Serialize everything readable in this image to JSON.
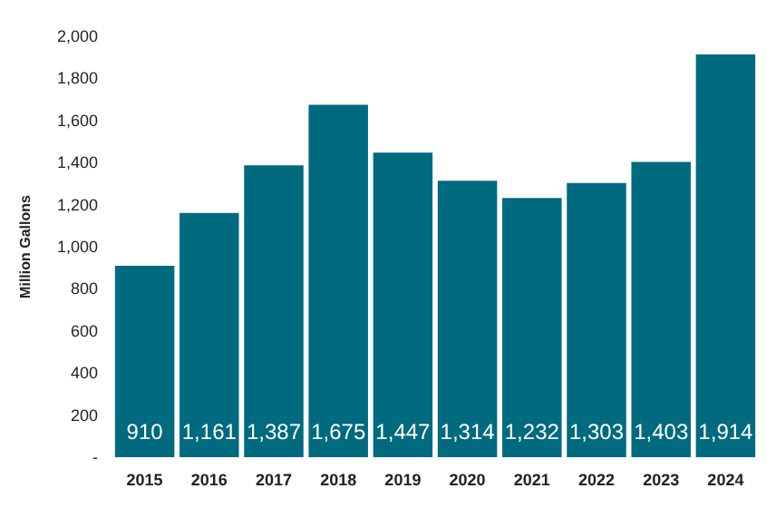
{
  "chart_data": {
    "type": "bar",
    "ylabel": "Million Gallons",
    "categories": [
      "2015",
      "2016",
      "2017",
      "2018",
      "2019",
      "2020",
      "2021",
      "2022",
      "2023",
      "2024"
    ],
    "values": [
      910,
      1161,
      1387,
      1675,
      1447,
      1314,
      1232,
      1303,
      1403,
      1914
    ],
    "value_labels": [
      "910",
      "1,161",
      "1,387",
      "1,675",
      "1,447",
      "1,314",
      "1,232",
      "1,303",
      "1,403",
      "1,914"
    ],
    "color": "#006a7e",
    "ylim": [
      0,
      2000
    ],
    "yticks": [
      {
        "value": 0,
        "label": "-"
      },
      200,
      400,
      600,
      800,
      {
        "value": 1000,
        "label": "1,000"
      },
      {
        "value": 1200,
        "label": "1,200"
      },
      {
        "value": 1400,
        "label": "1,400"
      },
      {
        "value": 1600,
        "label": "1,600"
      },
      {
        "value": 1800,
        "label": "1,800"
      },
      {
        "value": 2000,
        "label": "2,000"
      }
    ],
    "grid": false
  }
}
